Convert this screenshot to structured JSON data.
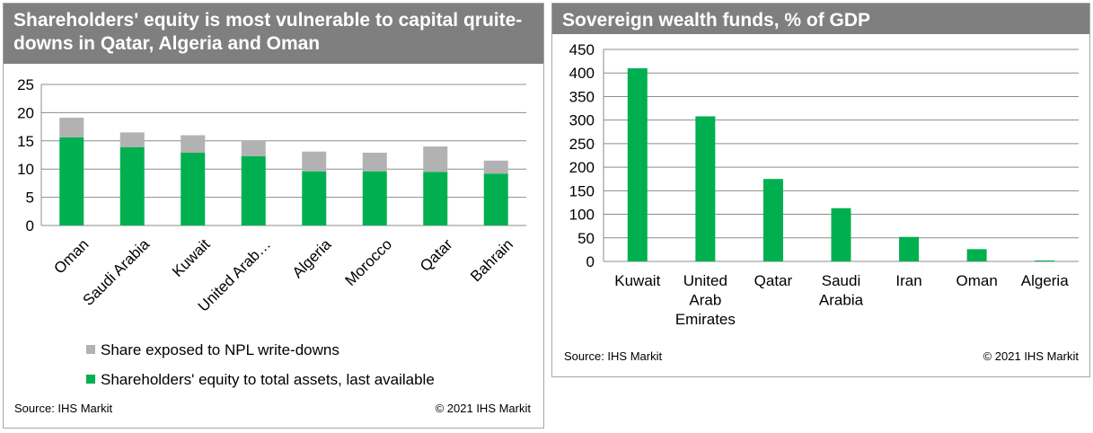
{
  "charts": {
    "left": {
      "title": "Shareholders' equity is most vulnerable to capital qruite-downs in Qatar, Algeria and Oman",
      "source": "Source: IHS Markit",
      "copyright": "© 2021 IHS Markit"
    },
    "right": {
      "title": "Sovereign wealth funds, % of GDP",
      "source": "Source: IHS Markit",
      "copyright": "© 2021 IHS Markit"
    }
  },
  "chart_data": [
    {
      "type": "bar",
      "stacked": true,
      "categories": [
        "Oman",
        "Saudi Arabia",
        "Kuwait",
        "United Arab…",
        "Algeria",
        "Morocco",
        "Qatar",
        "Bahrain"
      ],
      "series": [
        {
          "name": "Shareholders' equity to total assets, last available",
          "color": "#00b050",
          "values": [
            15.6,
            13.9,
            12.9,
            12.3,
            9.6,
            9.6,
            9.5,
            9.2
          ]
        },
        {
          "name": "Share exposed to NPL write-downs",
          "color": "#b2b2b2",
          "values": [
            3.5,
            2.6,
            3.1,
            2.8,
            3.5,
            3.3,
            4.5,
            2.3
          ]
        }
      ],
      "ylim": [
        0,
        25
      ],
      "yticks": [
        0,
        5,
        10,
        15,
        20,
        25
      ],
      "grid": true,
      "legend": "bottom"
    },
    {
      "type": "bar",
      "categories": [
        "Kuwait",
        "United Arab Emirates",
        "Qatar",
        "Saudi Arabia",
        "Iran",
        "Oman",
        "Algeria"
      ],
      "series": [
        {
          "color": "#00b050",
          "values": [
            410,
            308,
            175,
            113,
            52,
            26,
            2
          ]
        }
      ],
      "ylim": [
        0,
        450
      ],
      "yticks": [
        0,
        50,
        100,
        150,
        200,
        250,
        300,
        350,
        400,
        450
      ],
      "grid": true
    }
  ]
}
